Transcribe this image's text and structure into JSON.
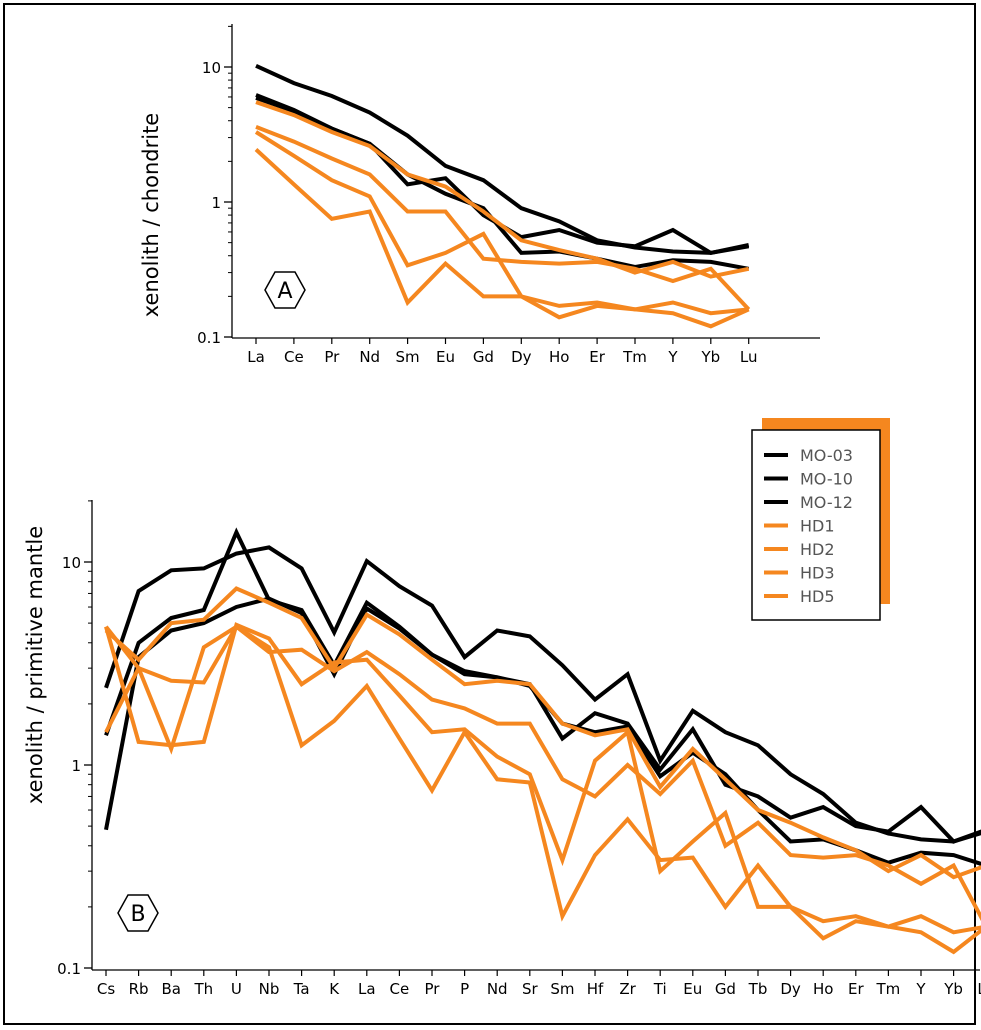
{
  "colors": {
    "mo": "#000000",
    "hd": "#f5871f",
    "axis": "#000000"
  },
  "legend": {
    "entries": [
      {
        "name": "MO-03",
        "group": "mo"
      },
      {
        "name": "MO-10",
        "group": "mo"
      },
      {
        "name": "MO-12",
        "group": "mo"
      },
      {
        "name": "HD1",
        "group": "hd"
      },
      {
        "name": "HD2",
        "group": "hd"
      },
      {
        "name": "HD3",
        "group": "hd"
      },
      {
        "name": "HD5",
        "group": "hd"
      }
    ]
  },
  "chart_data": [
    {
      "type": "line",
      "panel": "A",
      "ylabel": "xenolith / chondrite",
      "yscale": "log",
      "ylim": [
        0.1,
        20
      ],
      "yticks": [
        "10",
        "1",
        "0.1"
      ],
      "categories": [
        "La",
        "Ce",
        "Pr",
        "Nd",
        "Sm",
        "Eu",
        "Gd",
        "Dy",
        "Ho",
        "Er",
        "Tm",
        "Y",
        "Yb",
        "Lu"
      ],
      "series": [
        {
          "group": "mo",
          "values": [
            10.2,
            7.6,
            6.1,
            4.6,
            3.1,
            1.85,
            1.45,
            0.9,
            0.72,
            0.52,
            0.46,
            0.43,
            0.42,
            0.47
          ]
        },
        {
          "group": "mo",
          "values": [
            6.2,
            4.8,
            3.5,
            2.7,
            1.35,
            1.5,
            0.8,
            0.55,
            0.62,
            0.5,
            0.47,
            0.62,
            0.42,
            0.48
          ]
        },
        {
          "group": "mo",
          "values": [
            5.9,
            4.7,
            3.5,
            2.7,
            1.6,
            1.15,
            0.9,
            0.42,
            0.43,
            0.38,
            0.33,
            0.37,
            0.36,
            0.32
          ]
        },
        {
          "group": "hd",
          "values": [
            5.5,
            4.4,
            3.3,
            2.6,
            1.6,
            1.3,
            0.85,
            0.52,
            0.44,
            0.38,
            0.3,
            0.36,
            0.28,
            0.32
          ]
        },
        {
          "group": "hd",
          "values": [
            3.6,
            2.8,
            2.1,
            1.6,
            0.85,
            0.85,
            0.38,
            0.36,
            0.35,
            0.36,
            0.32,
            0.26,
            0.32,
            0.16
          ]
        },
        {
          "group": "hd",
          "values": [
            3.3,
            2.2,
            1.45,
            1.1,
            0.34,
            0.42,
            0.58,
            0.2,
            0.17,
            0.18,
            0.16,
            0.18,
            0.15,
            0.16
          ]
        },
        {
          "group": "hd",
          "values": [
            2.45,
            1.35,
            0.75,
            0.85,
            0.18,
            0.35,
            0.2,
            0.2,
            0.14,
            0.17,
            0.16,
            0.15,
            0.12,
            0.16
          ]
        }
      ]
    },
    {
      "type": "line",
      "panel": "B",
      "ylabel": "xenolith / primitive mantle",
      "yscale": "log",
      "ylim": [
        0.1,
        20
      ],
      "yticks": [
        "10",
        "1",
        "0.1"
      ],
      "categories": [
        "Cs",
        "Rb",
        "Ba",
        "Th",
        "U",
        "Nb",
        "Ta",
        "K",
        "La",
        "Ce",
        "Pr",
        "P",
        "Nd",
        "Sr",
        "Sm",
        "Hf",
        "Zr",
        "Ti",
        "Eu",
        "Gd",
        "Tb",
        "Dy",
        "Ho",
        "Er",
        "Tm",
        "Y",
        "Yb",
        "Lu"
      ],
      "series": [
        {
          "group": "mo",
          "values": [
            2.4,
            7.2,
            9.1,
            9.3,
            11.0,
            11.8,
            9.3,
            4.5,
            10.1,
            7.6,
            6.1,
            3.4,
            4.6,
            4.3,
            3.1,
            2.1,
            2.8,
            1.05,
            1.85,
            1.45,
            1.25,
            0.9,
            0.72,
            0.52,
            0.46,
            0.43,
            0.42,
            0.47
          ]
        },
        {
          "group": "mo",
          "values": [
            1.4,
            4.0,
            5.3,
            5.8,
            14.0,
            6.5,
            5.8,
            3.1,
            6.3,
            4.8,
            3.5,
            2.9,
            2.7,
            2.5,
            1.35,
            1.8,
            1.6,
            0.95,
            1.5,
            0.8,
            0.7,
            0.55,
            0.62,
            0.5,
            0.47,
            0.62,
            0.42,
            0.48
          ]
        },
        {
          "group": "mo",
          "values": [
            0.48,
            3.4,
            4.6,
            5.0,
            6.0,
            6.6,
            5.6,
            2.8,
            5.9,
            4.7,
            3.5,
            2.8,
            2.7,
            2.45,
            1.6,
            1.45,
            1.55,
            0.88,
            1.15,
            0.9,
            0.6,
            0.42,
            0.43,
            0.38,
            0.33,
            0.37,
            0.36,
            0.32
          ]
        },
        {
          "group": "hd",
          "values": [
            4.6,
            3.3,
            5.0,
            5.2,
            7.4,
            6.3,
            5.3,
            3.0,
            5.5,
            4.4,
            3.3,
            2.5,
            2.6,
            2.5,
            1.6,
            1.4,
            1.5,
            0.78,
            1.2,
            0.85,
            0.6,
            0.52,
            0.44,
            0.38,
            0.3,
            0.36,
            0.28,
            0.32
          ]
        },
        {
          "group": "hd",
          "values": [
            1.45,
            3.0,
            2.6,
            2.55,
            4.8,
            3.6,
            3.7,
            2.9,
            3.6,
            2.8,
            2.1,
            1.9,
            1.6,
            1.6,
            0.85,
            0.7,
            1.0,
            0.72,
            1.05,
            0.4,
            0.52,
            0.36,
            0.35,
            0.36,
            0.32,
            0.26,
            0.32,
            0.16
          ]
        },
        {
          "group": "hd",
          "values": [
            4.8,
            1.3,
            1.25,
            1.3,
            4.9,
            4.2,
            2.5,
            3.2,
            3.3,
            2.2,
            1.45,
            1.5,
            1.1,
            0.9,
            0.34,
            1.05,
            1.45,
            0.3,
            0.42,
            0.58,
            0.2,
            0.2,
            0.17,
            0.18,
            0.16,
            0.18,
            0.15,
            0.16
          ]
        },
        {
          "group": "hd",
          "values": [
            4.8,
            3.0,
            1.2,
            3.8,
            4.8,
            3.8,
            1.25,
            1.65,
            2.45,
            1.35,
            0.75,
            1.45,
            0.85,
            0.82,
            0.18,
            0.36,
            0.54,
            0.34,
            0.35,
            0.2,
            0.32,
            0.2,
            0.14,
            0.17,
            0.16,
            0.15,
            0.12,
            0.16
          ]
        }
      ]
    }
  ]
}
